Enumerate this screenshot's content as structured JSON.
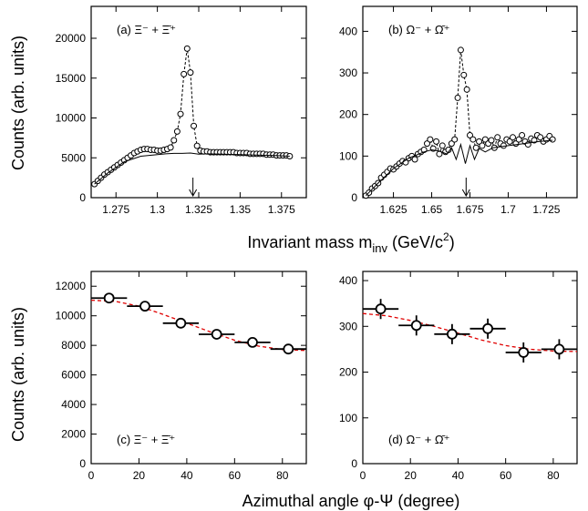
{
  "figure": {
    "top_xlabel_main": "Invariant mass m",
    "top_xlabel_sub": "inv",
    "top_xlabel_unit": " (GeV/c",
    "top_xlabel_sup": "2",
    "top_xlabel_close": ")",
    "top_ylabel": "Counts (arb. units)",
    "bottom_xlabel": "Azimuthal angle φ-Ψ (degree)",
    "bottom_ylabel": "Counts (arb. units)"
  },
  "chart_data": [
    {
      "type": "scatter",
      "panel_label": "(a) Ξ⁻ + Ξ̄⁺",
      "xlim": [
        1.26,
        1.39
      ],
      "ylim": [
        0,
        24000
      ],
      "xticks": [
        1.275,
        1.3,
        1.325,
        1.35,
        1.375
      ],
      "xtick_labels": [
        "1.275",
        "1.3",
        "1.325",
        "1.35",
        "1.375"
      ],
      "yticks": [
        0,
        5000,
        10000,
        15000,
        20000
      ],
      "ytick_labels": [
        "0",
        "5000",
        "10000",
        "15000",
        "20000"
      ],
      "arrow_at": 1.3215,
      "series": [
        {
          "style": "open-circles-dashed",
          "x": [
            1.262,
            1.264,
            1.266,
            1.268,
            1.27,
            1.272,
            1.274,
            1.276,
            1.278,
            1.28,
            1.282,
            1.284,
            1.286,
            1.288,
            1.29,
            1.292,
            1.294,
            1.296,
            1.298,
            1.3,
            1.302,
            1.304,
            1.306,
            1.308,
            1.31,
            1.312,
            1.314,
            1.316,
            1.318,
            1.32,
            1.322,
            1.324,
            1.326,
            1.328,
            1.33,
            1.332,
            1.334,
            1.336,
            1.338,
            1.34,
            1.342,
            1.344,
            1.346,
            1.348,
            1.35,
            1.352,
            1.354,
            1.356,
            1.358,
            1.36,
            1.362,
            1.364,
            1.366,
            1.368,
            1.37,
            1.372,
            1.374,
            1.376,
            1.378,
            1.38
          ],
          "y": [
            1700,
            2100,
            2500,
            2900,
            3200,
            3500,
            3800,
            4100,
            4400,
            4700,
            5000,
            5300,
            5600,
            5800,
            6000,
            6100,
            6100,
            6000,
            6000,
            5900,
            5900,
            6000,
            6100,
            6300,
            7200,
            8300,
            10500,
            15500,
            18700,
            15700,
            9000,
            6500,
            5900,
            5800,
            5800,
            5700,
            5700,
            5700,
            5700,
            5700,
            5700,
            5700,
            5700,
            5600,
            5600,
            5600,
            5600,
            5500,
            5500,
            5500,
            5500,
            5500,
            5400,
            5400,
            5400,
            5300,
            5300,
            5300,
            5300,
            5200
          ]
        },
        {
          "style": "solid-line",
          "x": [
            1.262,
            1.27,
            1.28,
            1.29,
            1.3,
            1.305,
            1.31,
            1.315,
            1.32,
            1.325,
            1.33,
            1.34,
            1.35,
            1.36,
            1.37,
            1.38
          ],
          "y": [
            1700,
            3100,
            4500,
            5200,
            5400,
            5500,
            5550,
            5550,
            5600,
            5450,
            5500,
            5450,
            5400,
            5350,
            5300,
            5200
          ]
        }
      ]
    },
    {
      "type": "scatter",
      "panel_label": "(b) Ω⁻ + Ω̄⁺",
      "xlim": [
        1.605,
        1.745
      ],
      "ylim": [
        0,
        460
      ],
      "xticks": [
        1.625,
        1.65,
        1.675,
        1.7,
        1.725
      ],
      "xtick_labels": [
        "1.625",
        "1.65",
        "1.675",
        "1.7",
        "1.725"
      ],
      "yticks": [
        0,
        100,
        200,
        300,
        400
      ],
      "ytick_labels": [
        "0",
        "100",
        "200",
        "300",
        "400"
      ],
      "arrow_at": 1.6725,
      "series": [
        {
          "style": "open-circles-dashed",
          "x": [
            1.607,
            1.609,
            1.611,
            1.613,
            1.615,
            1.617,
            1.619,
            1.621,
            1.623,
            1.625,
            1.627,
            1.629,
            1.631,
            1.633,
            1.635,
            1.637,
            1.639,
            1.641,
            1.643,
            1.645,
            1.647,
            1.649,
            1.651,
            1.653,
            1.655,
            1.657,
            1.659,
            1.661,
            1.663,
            1.665,
            1.667,
            1.669,
            1.671,
            1.673,
            1.675,
            1.677,
            1.679,
            1.681,
            1.683,
            1.685,
            1.687,
            1.689,
            1.691,
            1.693,
            1.695,
            1.697,
            1.699,
            1.701,
            1.703,
            1.705,
            1.707,
            1.709,
            1.711,
            1.713,
            1.715,
            1.717,
            1.719,
            1.721,
            1.723,
            1.725,
            1.727,
            1.729
          ],
          "y": [
            5,
            12,
            22,
            28,
            35,
            48,
            55,
            62,
            70,
            68,
            75,
            82,
            88,
            85,
            95,
            100,
            92,
            105,
            110,
            115,
            130,
            140,
            118,
            135,
            105,
            125,
            110,
            115,
            130,
            140,
            240,
            355,
            295,
            260,
            150,
            140,
            120,
            135,
            125,
            140,
            130,
            138,
            120,
            145,
            130,
            125,
            140,
            135,
            145,
            130,
            140,
            150,
            135,
            128,
            142,
            138,
            150,
            145,
            135,
            140,
            148,
            140
          ]
        },
        {
          "style": "solid-line",
          "x": [
            1.607,
            1.615,
            1.625,
            1.635,
            1.645,
            1.65,
            1.655,
            1.66,
            1.663,
            1.666,
            1.669,
            1.672,
            1.675,
            1.678,
            1.681,
            1.685,
            1.69,
            1.7,
            1.71,
            1.72,
            1.729
          ],
          "y": [
            5,
            35,
            70,
            95,
            110,
            115,
            112,
            105,
            120,
            92,
            128,
            82,
            125,
            92,
            118,
            110,
            120,
            125,
            130,
            135,
            138
          ]
        }
      ]
    },
    {
      "type": "scatter",
      "panel_label": "(c) Ξ⁻ + Ξ̄⁺",
      "xlim": [
        0,
        90
      ],
      "ylim": [
        0,
        13000
      ],
      "xticks": [
        0,
        20,
        40,
        60,
        80
      ],
      "xtick_labels": [
        "0",
        "20",
        "40",
        "60",
        "80"
      ],
      "yticks": [
        0,
        2000,
        4000,
        6000,
        8000,
        10000,
        12000
      ],
      "ytick_labels": [
        "0",
        "2000",
        "4000",
        "6000",
        "8000",
        "10000",
        "12000"
      ],
      "points": {
        "x": [
          7.5,
          22.5,
          37.5,
          52.5,
          67.5,
          82.5
        ],
        "y": [
          11200,
          10650,
          9500,
          8750,
          8200,
          7750
        ],
        "xerr": 7.5,
        "yerr": [
          150,
          150,
          150,
          150,
          150,
          150
        ]
      },
      "fit": {
        "style": "red-dashed",
        "x": [
          0,
          10,
          20,
          30,
          40,
          50,
          60,
          70,
          80,
          90
        ],
        "y": [
          11050,
          10980,
          10650,
          10100,
          9500,
          8900,
          8350,
          7950,
          7720,
          7650
        ]
      }
    },
    {
      "type": "scatter",
      "panel_label": "(d) Ω⁻ + Ω̄⁺",
      "xlim": [
        0,
        90
      ],
      "ylim": [
        0,
        420
      ],
      "xticks": [
        0,
        20,
        40,
        60,
        80
      ],
      "xtick_labels": [
        "0",
        "20",
        "40",
        "60",
        "80"
      ],
      "yticks": [
        0,
        100,
        200,
        300,
        400
      ],
      "ytick_labels": [
        "0",
        "100",
        "200",
        "300",
        "400"
      ],
      "points": {
        "x": [
          7.5,
          22.5,
          37.5,
          52.5,
          67.5,
          82.5
        ],
        "y": [
          338,
          302,
          283,
          295,
          243,
          250
        ],
        "xerr": 7.5,
        "yerr": [
          22,
          22,
          22,
          22,
          22,
          22
        ]
      },
      "fit": {
        "style": "red-dashed",
        "x": [
          0,
          10,
          20,
          30,
          40,
          50,
          60,
          70,
          80,
          90
        ],
        "y": [
          328,
          323,
          313,
          300,
          285,
          270,
          258,
          250,
          246,
          245
        ]
      }
    }
  ]
}
